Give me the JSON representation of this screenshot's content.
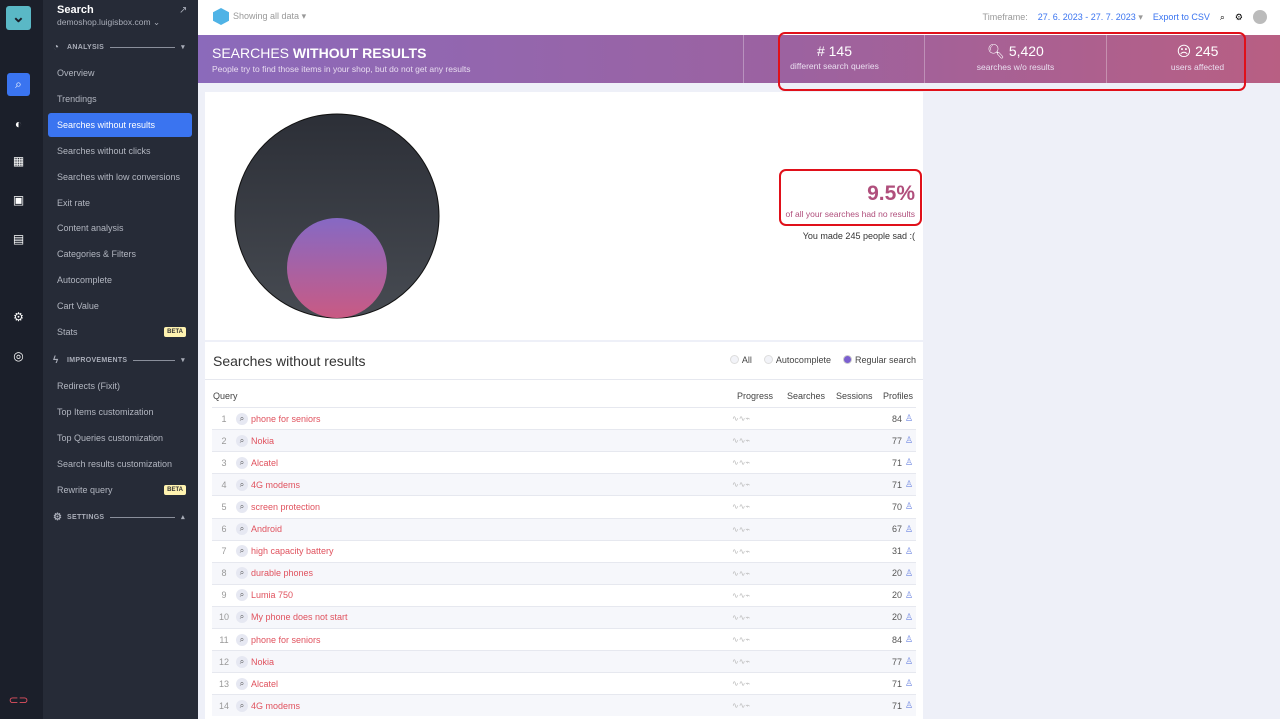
{
  "app": {
    "title": "Search",
    "domain": "demoshop.luigisbox.com"
  },
  "sidebar": {
    "analysis_label": "ANALYSIS",
    "improvements_label": "IMPROVEMENTS",
    "settings_label": "SETTINGS",
    "beta": "BETA",
    "analysis_items": [
      "Overview",
      "Trendings",
      "Searches without results",
      "Searches without clicks",
      "Searches with low conversions",
      "Exit rate",
      "Content analysis",
      "Categories & Filters",
      "Autocomplete",
      "Cart Value",
      "Stats"
    ],
    "improvement_items": [
      "Redirects (Fixit)",
      "Top Items customization",
      "Top Queries customization",
      "Search results customization",
      "Rewrite query"
    ]
  },
  "topbar": {
    "showing": "Showing all data",
    "timeframe_label": "Timeframe:",
    "timeframe": "27. 6. 2023 - 27. 7. 2023",
    "export": "Export to CSV"
  },
  "banner": {
    "title_light": "SEARCHES ",
    "title_bold": "WITHOUT RESULTS",
    "subtitle": "People try to find those items in your shop, but do not get any results",
    "stats": [
      {
        "value": "# 145",
        "label": "different search queries"
      },
      {
        "value": "5,420",
        "label": "searches w/o results"
      },
      {
        "value": "245",
        "label": "users affected"
      }
    ]
  },
  "summary": {
    "percent": "9.5%",
    "percent_label": "of all your searches had no results",
    "sad": "You made 245 people sad :(",
    "share": 0.095
  },
  "table": {
    "title": "Searches without results",
    "filters": [
      "All",
      "Autocomplete",
      "Regular search"
    ],
    "selected_filter": "Regular search",
    "columns": [
      "Query",
      "Progress",
      "Searches",
      "Sessions",
      "Profiles"
    ],
    "rows": [
      {
        "n": "1",
        "q": "phone for seniors",
        "p": "84"
      },
      {
        "n": "2",
        "q": "Nokia",
        "p": "77"
      },
      {
        "n": "3",
        "q": "Alcatel",
        "p": "71"
      },
      {
        "n": "4",
        "q": "4G modems",
        "p": "71"
      },
      {
        "n": "5",
        "q": "screen protection",
        "p": "70"
      },
      {
        "n": "6",
        "q": "Android",
        "p": "67"
      },
      {
        "n": "7",
        "q": "high capacity battery",
        "p": "31"
      },
      {
        "n": "8",
        "q": "durable phones",
        "p": "20"
      },
      {
        "n": "9",
        "q": "Lumia 750",
        "p": "20"
      },
      {
        "n": "10",
        "q": "My phone does not start",
        "p": "20"
      },
      {
        "n": "11",
        "q": "phone for seniors",
        "p": "84"
      },
      {
        "n": "12",
        "q": "Nokia",
        "p": "77"
      },
      {
        "n": "13",
        "q": "Alcatel",
        "p": "71"
      },
      {
        "n": "14",
        "q": "4G modems",
        "p": "71"
      }
    ]
  }
}
